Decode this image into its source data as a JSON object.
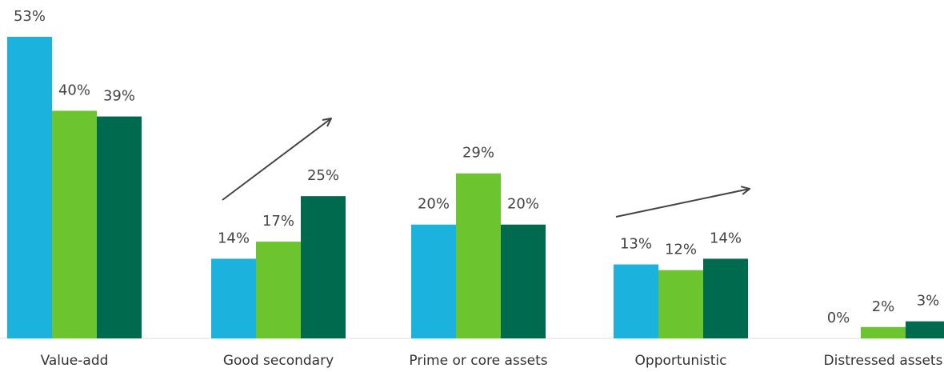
{
  "chart_data": {
    "type": "bar",
    "categories": [
      "Value-add",
      "Good secondary",
      "Prime or core assets",
      "Opportunistic",
      "Distressed assets"
    ],
    "series": [
      {
        "values": [
          53,
          14,
          20,
          13,
          0
        ],
        "labels": [
          "53%",
          "14%",
          "20%",
          "13%",
          "0%"
        ],
        "color": "#1BB3DD"
      },
      {
        "values": [
          40,
          17,
          29,
          12,
          2
        ],
        "labels": [
          "40%",
          "17%",
          "29%",
          "12%",
          "2%"
        ],
        "color": "#6CC42F"
      },
      {
        "values": [
          39,
          25,
          20,
          14,
          3
        ],
        "labels": [
          "39%",
          "25%",
          "20%",
          "14%",
          "3%"
        ],
        "color": "#006A4E"
      }
    ],
    "trend_arrows": [
      "Good secondary",
      "Opportunistic"
    ],
    "ylim": [
      0,
      53
    ],
    "grid": false,
    "legend": "none"
  },
  "colors": {
    "text": "#444444",
    "arrow": "#444444",
    "axis": "#999999"
  }
}
